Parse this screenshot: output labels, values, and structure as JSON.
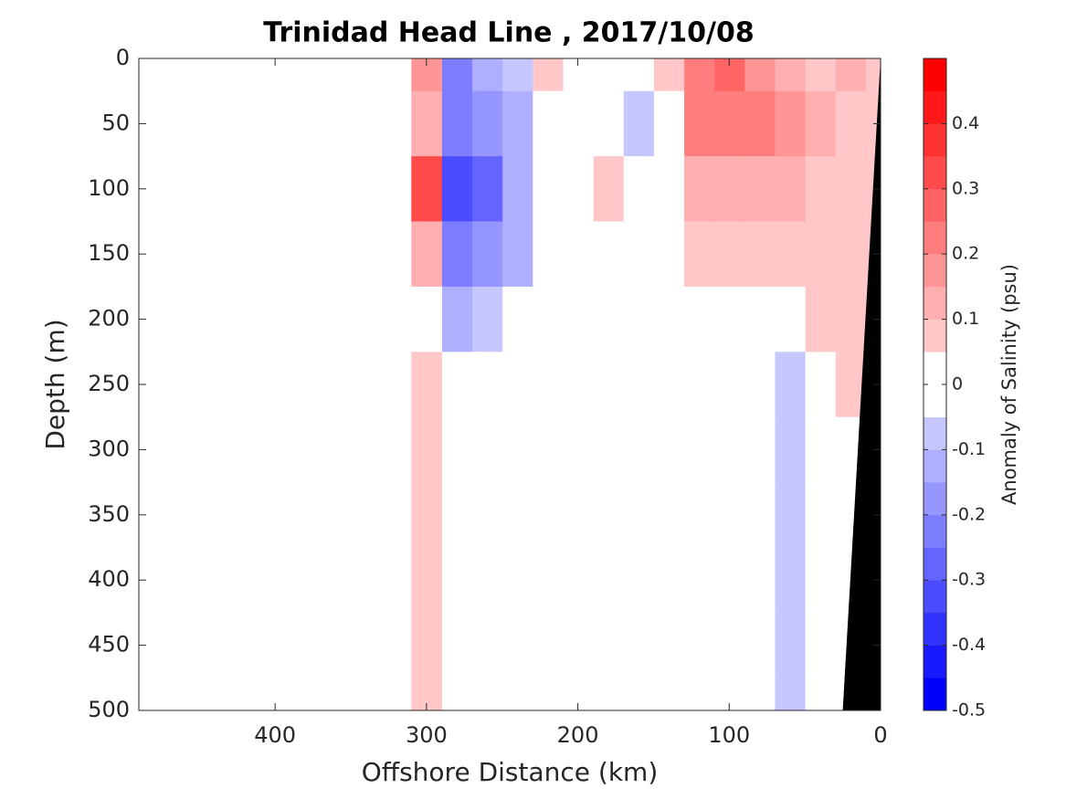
{
  "chart_data": {
    "type": "contourf",
    "title": "Trinidad Head Line , 2017/10/08",
    "xlabel": "Offshore Distance (km)",
    "ylabel": "Depth (m)",
    "colorbar_label": "Anomaly of Salinity (psu)",
    "xlim": [
      490,
      0
    ],
    "ylim": [
      0,
      500
    ],
    "xticks": [
      400,
      300,
      200,
      100,
      0
    ],
    "yticks": [
      0,
      50,
      100,
      150,
      200,
      250,
      300,
      350,
      400,
      450,
      500
    ],
    "x": [
      0,
      20,
      40,
      60,
      80,
      100,
      120,
      140,
      160,
      180,
      200,
      220,
      240,
      260,
      280,
      300
    ],
    "depth": [
      0,
      50,
      100,
      150,
      200,
      250,
      300,
      350,
      400,
      450,
      500
    ],
    "z": [
      [
        0.1,
        0.12,
        0.1,
        0.15,
        0.2,
        0.3,
        0.25,
        0.07,
        0.02,
        0,
        0,
        0.07,
        -0.08,
        -0.12,
        -0.2,
        0.2
      ],
      [
        0.08,
        0.1,
        0.12,
        0.18,
        0.22,
        0.25,
        0.22,
        0.02,
        -0.06,
        0,
        0,
        0.02,
        -0.1,
        -0.15,
        -0.2,
        0.15
      ],
      [
        0.07,
        0.08,
        0.1,
        0.12,
        0.15,
        0.15,
        0.12,
        0.03,
        0,
        0.07,
        0,
        -0.02,
        -0.12,
        -0.25,
        -0.3,
        0.35
      ],
      [
        0.07,
        0.07,
        0.08,
        0.1,
        0.1,
        0.08,
        0.07,
        0,
        0,
        0.02,
        0,
        -0.02,
        -0.1,
        -0.18,
        -0.2,
        0.15
      ],
      [
        0.07,
        0.07,
        0.06,
        0.03,
        0.02,
        0,
        0,
        0,
        0,
        0,
        0,
        0,
        -0.02,
        -0.06,
        -0.1,
        0.02
      ],
      [
        0.07,
        0.06,
        0.02,
        -0.06,
        0,
        0,
        0,
        0,
        0,
        0,
        0,
        0,
        0,
        0,
        -0.03,
        0.06
      ],
      [
        0,
        0,
        -0.03,
        -0.07,
        -0.02,
        0,
        0,
        0,
        0,
        0,
        0,
        0,
        0,
        0,
        0,
        0.07
      ],
      [
        0,
        0,
        -0.03,
        -0.07,
        -0.02,
        0,
        0,
        0,
        0,
        0,
        0,
        0,
        0,
        0,
        0,
        0.07
      ],
      [
        0,
        0,
        -0.03,
        -0.07,
        -0.02,
        0,
        0,
        0,
        0,
        0,
        0,
        0,
        0,
        0,
        0,
        0.07
      ],
      [
        0,
        0,
        -0.03,
        -0.06,
        -0.02,
        0,
        0,
        0,
        0,
        0,
        0,
        0,
        0,
        0,
        0,
        0.07
      ],
      [
        0,
        0,
        -0.03,
        -0.06,
        -0.02,
        0,
        0,
        0,
        0,
        0,
        0,
        0,
        0,
        0,
        0,
        0.07
      ]
    ],
    "clevels": [
      -0.5,
      -0.45,
      -0.4,
      -0.35,
      -0.3,
      -0.25,
      -0.2,
      -0.15,
      -0.1,
      -0.05,
      0.05,
      0.1,
      0.15,
      0.2,
      0.25,
      0.3,
      0.35,
      0.4,
      0.45,
      0.5
    ],
    "cticks": [
      -0.5,
      -0.4,
      -0.3,
      -0.2,
      -0.1,
      0,
      0.1,
      0.2,
      0.3,
      0.4
    ],
    "cmap": {
      "negative": "#0000ff",
      "positive": "#ff0000",
      "neutral": "#ffffff"
    },
    "seafloor": {
      "color": "#000000",
      "x": [
        0,
        25,
        0
      ],
      "depth": [
        0,
        500,
        500
      ]
    }
  }
}
